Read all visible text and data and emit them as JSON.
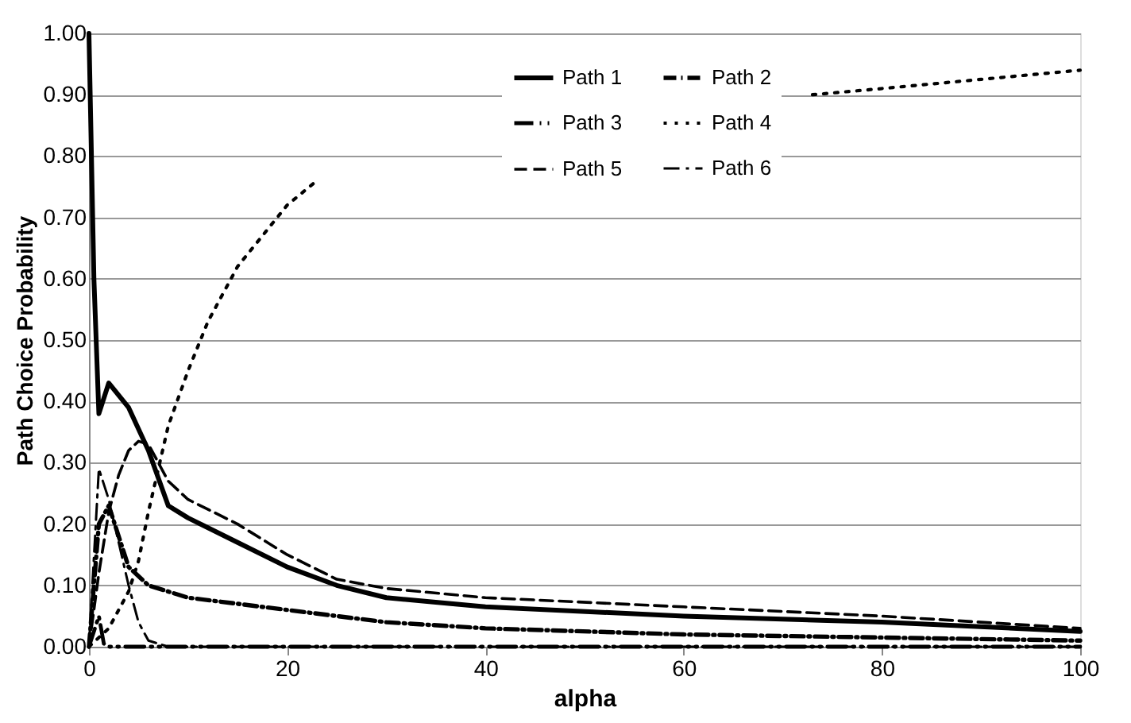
{
  "chart_data": {
    "type": "line",
    "xlabel": "alpha",
    "ylabel": "Path Choice Probability",
    "xlim": [
      0,
      100
    ],
    "ylim": [
      0,
      1
    ],
    "xticks": [
      0,
      20,
      40,
      60,
      80,
      100
    ],
    "yticks": [
      {
        "value": 0,
        "label": "0.00"
      },
      {
        "value": 0.1,
        "label": "0.10"
      },
      {
        "value": 0.2,
        "label": "0.20"
      },
      {
        "value": 0.3,
        "label": "0.30"
      },
      {
        "value": 0.4,
        "label": "0.40"
      },
      {
        "value": 0.5,
        "label": "0.50"
      },
      {
        "value": 0.6,
        "label": "0.60"
      },
      {
        "value": 0.7,
        "label": "0.70"
      },
      {
        "value": 0.8,
        "label": "0.80"
      },
      {
        "value": 0.9,
        "label": "0.90"
      },
      {
        "value": 1,
        "label": "1.00"
      }
    ],
    "grid": "y",
    "legend": "top",
    "marker": "none",
    "series": [
      {
        "name": "Path 1",
        "color": "#000000",
        "line_style": "solid",
        "x": [
          0,
          0.5,
          1,
          2,
          4,
          6,
          8,
          10,
          15,
          20,
          25,
          30,
          40,
          60,
          80,
          100
        ],
        "values": [
          1.0,
          0.6,
          0.38,
          0.43,
          0.39,
          0.32,
          0.23,
          0.21,
          0.17,
          0.13,
          0.1,
          0.08,
          0.065,
          0.05,
          0.04,
          0.025
        ]
      },
      {
        "name": "Path 2",
        "color": "#000000",
        "line_style": "dashdot",
        "x": [
          0,
          1,
          2,
          4,
          6,
          10,
          20,
          30,
          40,
          60,
          80,
          100
        ],
        "values": [
          0,
          0.2,
          0.23,
          0.13,
          0.1,
          0.08,
          0.06,
          0.04,
          0.03,
          0.02,
          0.015,
          0.01
        ]
      },
      {
        "name": "Path 3",
        "color": "#000000",
        "line_style": "dashdotdot",
        "x": [
          0,
          1,
          1.5,
          2,
          100
        ],
        "values": [
          0,
          0.05,
          0.005,
          0,
          0
        ]
      },
      {
        "name": "Path 4",
        "color": "#000000",
        "line_style": "dotted",
        "x": [
          0,
          2,
          4,
          5,
          6,
          7,
          8,
          10,
          12,
          15,
          20,
          23,
          30,
          73,
          80,
          90,
          100
        ],
        "values": [
          0,
          0.03,
          0.09,
          0.14,
          0.22,
          0.29,
          0.36,
          0.45,
          0.53,
          0.62,
          0.72,
          0.76,
          null,
          0.9,
          0.91,
          0.925,
          0.94
        ]
      },
      {
        "name": "Path 5",
        "color": "#000000",
        "line_style": "dashed",
        "x": [
          0,
          1,
          2,
          3,
          4,
          5,
          6,
          7,
          8,
          10,
          15,
          20,
          25,
          30,
          40,
          60,
          80,
          100
        ],
        "values": [
          0,
          0.12,
          0.22,
          0.28,
          0.32,
          0.335,
          0.33,
          0.3,
          0.27,
          0.24,
          0.2,
          0.15,
          0.11,
          0.095,
          0.08,
          0.065,
          0.05,
          0.03
        ]
      },
      {
        "name": "Path 6",
        "color": "#000000",
        "line_style": "longdashdot",
        "x": [
          0,
          1,
          2,
          3,
          4,
          5,
          6,
          8,
          100
        ],
        "values": [
          0,
          0.29,
          0.24,
          0.17,
          0.1,
          0.04,
          0.01,
          0,
          0
        ]
      }
    ]
  }
}
